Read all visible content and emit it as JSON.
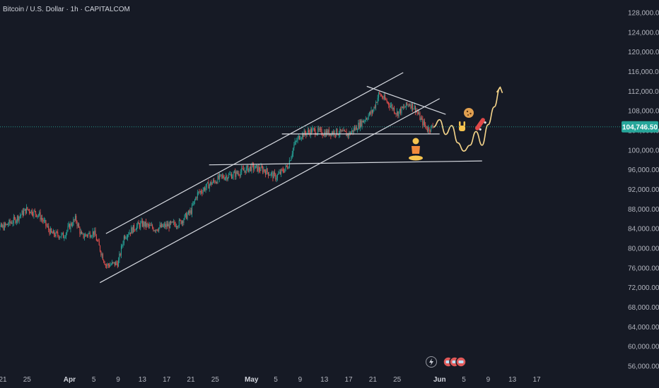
{
  "title": "Bitcoin / U.S. Dollar · 1h · CAPITALCOM",
  "current_price": "104,746.50",
  "colors": {
    "background": "#161a25",
    "up": "#26a69a",
    "down": "#ef5350",
    "price_tag": "#26a69a",
    "trendline": "#d8dbe2",
    "projection": "#f5d48a",
    "axis_text": "#b2b5be"
  },
  "icons": [
    "lightning-icon",
    "avatar-group-icon",
    "meditation-emoji-icon",
    "hand-sign-emoji-icon",
    "cookie-emoji-icon",
    "skateboard-emoji-icon"
  ],
  "chart_data": {
    "type": "candlestick",
    "ylim": [
      54000,
      130000
    ],
    "y_ticks": [
      56000,
      60000,
      64000,
      68000,
      72000,
      76000,
      80000,
      84000,
      88000,
      92000,
      96000,
      100000,
      104000,
      108000,
      112000,
      116000,
      120000,
      124000,
      128000
    ],
    "y_tick_labels": [
      "56,000.00",
      "60,000.00",
      "64,000.00",
      "68,000.00",
      "72,000.00",
      "76,000.00",
      "80,000.00",
      "84,000.00",
      "88,000.00",
      "92,000.00",
      "96,000.00",
      "100,000.00",
      "104,000.00",
      "108,000.00",
      "112,000.00",
      "116,000.00",
      "120,000.00",
      "124,000.00",
      "128,000.00"
    ],
    "x_ticks": [
      {
        "label": "21",
        "date": "2025-03-21"
      },
      {
        "label": "25",
        "date": "2025-03-25"
      },
      {
        "label": "Apr",
        "date": "2025-04-01"
      },
      {
        "label": "5",
        "date": "2025-04-05"
      },
      {
        "label": "9",
        "date": "2025-04-09"
      },
      {
        "label": "13",
        "date": "2025-04-13"
      },
      {
        "label": "17",
        "date": "2025-04-17"
      },
      {
        "label": "21",
        "date": "2025-04-21"
      },
      {
        "label": "25",
        "date": "2025-04-25"
      },
      {
        "label": "May",
        "date": "2025-05-01"
      },
      {
        "label": "5",
        "date": "2025-05-05"
      },
      {
        "label": "9",
        "date": "2025-05-09"
      },
      {
        "label": "13",
        "date": "2025-05-13"
      },
      {
        "label": "17",
        "date": "2025-05-17"
      },
      {
        "label": "21",
        "date": "2025-05-21"
      },
      {
        "label": "25",
        "date": "2025-05-25"
      },
      {
        "label": "Jun",
        "date": "2025-06-01"
      },
      {
        "label": "5",
        "date": "2025-06-05"
      },
      {
        "label": "9",
        "date": "2025-06-09"
      },
      {
        "label": "13",
        "date": "2025-06-13"
      },
      {
        "label": "17",
        "date": "2025-06-17"
      }
    ],
    "price_path": [
      [
        "2025-03-19",
        84000
      ],
      [
        "2025-03-21",
        84300
      ],
      [
        "2025-03-23",
        85800
      ],
      [
        "2025-03-25",
        88000
      ],
      [
        "2025-03-27",
        86800
      ],
      [
        "2025-03-29",
        83000
      ],
      [
        "2025-03-31",
        82500
      ],
      [
        "2025-04-01",
        84500
      ],
      [
        "2025-04-02",
        86000
      ],
      [
        "2025-04-03",
        82400
      ],
      [
        "2025-04-05",
        83300
      ],
      [
        "2025-04-07",
        76500
      ],
      [
        "2025-04-09",
        77000
      ],
      [
        "2025-04-10",
        82500
      ],
      [
        "2025-04-12",
        84500
      ],
      [
        "2025-04-13",
        85000
      ],
      [
        "2025-04-15",
        84000
      ],
      [
        "2025-04-17",
        84600
      ],
      [
        "2025-04-19",
        85100
      ],
      [
        "2025-04-21",
        87500
      ],
      [
        "2025-04-22",
        91000
      ],
      [
        "2025-04-24",
        93000
      ],
      [
        "2025-04-26",
        94500
      ],
      [
        "2025-04-28",
        95000
      ],
      [
        "2025-05-01",
        96500
      ],
      [
        "2025-05-03",
        96000
      ],
      [
        "2025-05-05",
        94500
      ],
      [
        "2025-05-07",
        96800
      ],
      [
        "2025-05-08",
        101000
      ],
      [
        "2025-05-09",
        103000
      ],
      [
        "2025-05-11",
        104000
      ],
      [
        "2025-05-13",
        103500
      ],
      [
        "2025-05-15",
        103700
      ],
      [
        "2025-05-17",
        103200
      ],
      [
        "2025-05-19",
        105500
      ],
      [
        "2025-05-21",
        108000
      ],
      [
        "2025-05-22",
        111500
      ],
      [
        "2025-05-24",
        109000
      ],
      [
        "2025-05-25",
        107500
      ],
      [
        "2025-05-27",
        109500
      ],
      [
        "2025-05-28",
        108500
      ],
      [
        "2025-05-29",
        106000
      ],
      [
        "2025-05-30",
        104300
      ],
      [
        "2025-05-31",
        104746.5
      ]
    ],
    "trendlines": [
      {
        "name": "channel-upper",
        "from": [
          "2025-04-07",
          83000
        ],
        "to": [
          "2025-05-26",
          115800
        ]
      },
      {
        "name": "channel-lower",
        "from": [
          "2025-04-06",
          73000
        ],
        "to": [
          "2025-06-01",
          110500
        ]
      },
      {
        "name": "descending-resistance",
        "from": [
          "2025-05-20",
          113000
        ],
        "to": [
          "2025-06-02",
          107300
        ]
      },
      {
        "name": "support-upper",
        "from": [
          "2025-05-06",
          103300
        ],
        "to": [
          "2025-06-01",
          103300
        ]
      },
      {
        "name": "support-lower",
        "from": [
          "2025-04-24",
          97000
        ],
        "to": [
          "2025-06-08",
          97800
        ]
      }
    ],
    "projection": [
      [
        "2025-05-31",
        104700
      ],
      [
        "2025-06-01",
        106200
      ],
      [
        "2025-06-02",
        103200
      ],
      [
        "2025-06-03",
        105000
      ],
      [
        "2025-06-04",
        101500
      ],
      [
        "2025-06-05",
        99800
      ],
      [
        "2025-06-06",
        101000
      ],
      [
        "2025-06-07",
        103800
      ],
      [
        "2025-06-08",
        101000
      ],
      [
        "2025-06-09",
        105200
      ],
      [
        "2025-06-10",
        108800
      ],
      [
        "2025-06-11",
        112800
      ]
    ]
  }
}
